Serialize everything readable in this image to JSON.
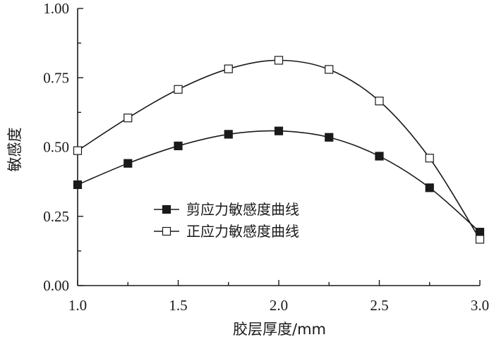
{
  "chart_data": {
    "type": "line",
    "title": "",
    "xlabel": "胶层厚度/mm",
    "ylabel": "敏感度",
    "xlim": [
      1.0,
      3.0
    ],
    "ylim": [
      0.0,
      1.0
    ],
    "xticks": [
      "1.0",
      "1.5",
      "2.0",
      "2.5",
      "3.0"
    ],
    "yticks": [
      "0.00",
      "0.25",
      "0.50",
      "0.75",
      "1.00"
    ],
    "x": [
      1.0,
      1.25,
      1.5,
      1.75,
      2.0,
      2.25,
      2.5,
      2.75,
      3.0
    ],
    "series": [
      {
        "name": "剪应力敏感度曲线",
        "marker": "filled-square",
        "values": [
          0.364,
          0.441,
          0.504,
          0.546,
          0.558,
          0.535,
          0.467,
          0.353,
          0.193
        ]
      },
      {
        "name": "正应力敏感度曲线",
        "marker": "open-square",
        "values": [
          0.487,
          0.605,
          0.708,
          0.782,
          0.813,
          0.78,
          0.666,
          0.46,
          0.167
        ]
      }
    ],
    "grid": false,
    "legend_position": "center"
  }
}
